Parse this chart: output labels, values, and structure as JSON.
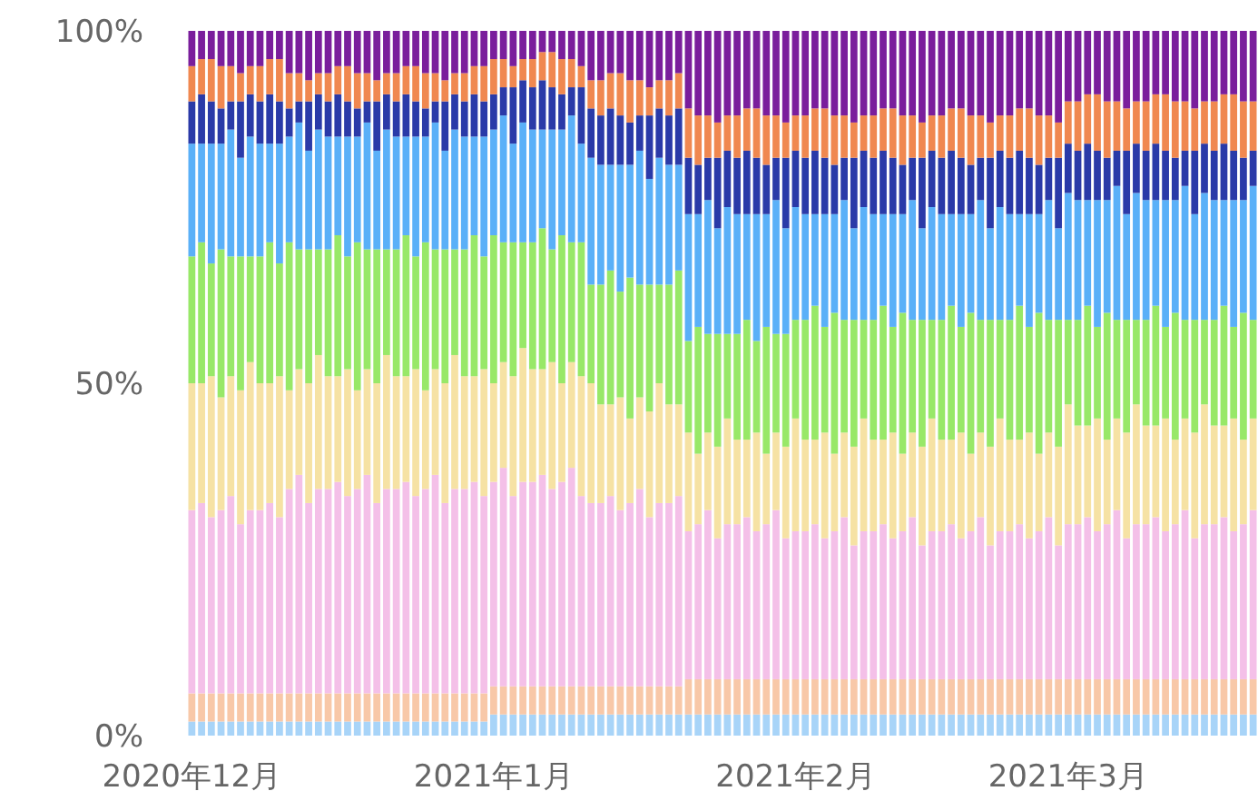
{
  "chart_data": {
    "type": "bar",
    "stacked": true,
    "xlim": [
      "2020-11-30T12:00",
      "2021-03-20T12:00"
    ],
    "xticks": [
      {
        "value": "2020-12-01",
        "label": "2020年12月"
      },
      {
        "value": "2021-01-01",
        "label": "2021年1月"
      },
      {
        "value": "2021-02-01",
        "label": "2021年2月"
      },
      {
        "value": "2021-03-01",
        "label": "2021年3月"
      }
    ],
    "ylim": [
      0,
      100
    ],
    "yticks": [
      {
        "value": 0,
        "label": "0%"
      },
      {
        "value": 50,
        "label": "50%"
      },
      {
        "value": 100,
        "label": "100%"
      }
    ],
    "x": [
      "2020-12-01",
      "2020-12-02",
      "2020-12-03",
      "2020-12-04",
      "2020-12-05",
      "2020-12-06",
      "2020-12-07",
      "2020-12-08",
      "2020-12-09",
      "2020-12-10",
      "2020-12-11",
      "2020-12-12",
      "2020-12-13",
      "2020-12-14",
      "2020-12-15",
      "2020-12-16",
      "2020-12-17",
      "2020-12-18",
      "2020-12-19",
      "2020-12-20",
      "2020-12-21",
      "2020-12-22",
      "2020-12-23",
      "2020-12-24",
      "2020-12-25",
      "2020-12-26",
      "2020-12-27",
      "2020-12-28",
      "2020-12-29",
      "2020-12-30",
      "2020-12-31",
      "2021-01-01",
      "2021-01-02",
      "2021-01-03",
      "2021-01-04",
      "2021-01-05",
      "2021-01-06",
      "2021-01-07",
      "2021-01-08",
      "2021-01-09",
      "2021-01-10",
      "2021-01-11",
      "2021-01-12",
      "2021-01-13",
      "2021-01-14",
      "2021-01-15",
      "2021-01-16",
      "2021-01-17",
      "2021-01-18",
      "2021-01-19",
      "2021-01-20",
      "2021-01-21",
      "2021-01-22",
      "2021-01-23",
      "2021-01-24",
      "2021-01-25",
      "2021-01-26",
      "2021-01-27",
      "2021-01-28",
      "2021-01-29",
      "2021-01-30",
      "2021-01-31",
      "2021-02-01",
      "2021-02-02",
      "2021-02-03",
      "2021-02-04",
      "2021-02-05",
      "2021-02-06",
      "2021-02-07",
      "2021-02-08",
      "2021-02-09",
      "2021-02-10",
      "2021-02-11",
      "2021-02-12",
      "2021-02-13",
      "2021-02-14",
      "2021-02-15",
      "2021-02-16",
      "2021-02-17",
      "2021-02-18",
      "2021-02-19",
      "2021-02-20",
      "2021-02-21",
      "2021-02-22",
      "2021-02-23",
      "2021-02-24",
      "2021-02-25",
      "2021-02-26",
      "2021-02-27",
      "2021-02-28",
      "2021-03-01",
      "2021-03-02",
      "2021-03-03",
      "2021-03-04",
      "2021-03-05",
      "2021-03-06",
      "2021-03-07",
      "2021-03-08",
      "2021-03-09",
      "2021-03-10",
      "2021-03-11",
      "2021-03-12",
      "2021-03-13",
      "2021-03-14",
      "2021-03-15",
      "2021-03-16",
      "2021-03-17",
      "2021-03-18",
      "2021-03-19",
      "2021-03-20"
    ],
    "series": [
      {
        "color": "#a8d4f8",
        "values": [
          2,
          2,
          2,
          2,
          2,
          2,
          2,
          2,
          2,
          2,
          2,
          2,
          2,
          2,
          2,
          2,
          2,
          2,
          2,
          2,
          2,
          2,
          2,
          2,
          2,
          2,
          2,
          2,
          2,
          2,
          2,
          3,
          3,
          3,
          3,
          3,
          3,
          3,
          3,
          3,
          3,
          3,
          3,
          3,
          3,
          3,
          3,
          3,
          3,
          3,
          3,
          3,
          3,
          3,
          3,
          3,
          3,
          3,
          3,
          3,
          3,
          3,
          3,
          3,
          3,
          3,
          3,
          3,
          3,
          3,
          3,
          3,
          3,
          3,
          3,
          3,
          3,
          3,
          3,
          3,
          3,
          3,
          3,
          3,
          3,
          3,
          3,
          3,
          3,
          3,
          3,
          3,
          3,
          3,
          3,
          3,
          3,
          3,
          3,
          3,
          3,
          3,
          3,
          3,
          3,
          3,
          3,
          3,
          3,
          3
        ]
      },
      {
        "color": "#f8c8a8",
        "values": [
          4,
          4,
          4,
          4,
          4,
          4,
          4,
          4,
          4,
          4,
          4,
          4,
          4,
          4,
          4,
          4,
          4,
          4,
          4,
          4,
          4,
          4,
          4,
          4,
          4,
          4,
          4,
          4,
          4,
          4,
          4,
          4,
          4,
          4,
          4,
          4,
          4,
          4,
          4,
          4,
          4,
          4,
          4,
          4,
          4,
          4,
          4,
          4,
          4,
          4,
          4,
          5,
          5,
          5,
          5,
          5,
          5,
          5,
          5,
          5,
          5,
          5,
          5,
          5,
          5,
          5,
          5,
          5,
          5,
          5,
          5,
          5,
          5,
          5,
          5,
          5,
          5,
          5,
          5,
          5,
          5,
          5,
          5,
          5,
          5,
          5,
          5,
          5,
          5,
          5,
          5,
          5,
          5,
          5,
          5,
          5,
          5,
          5,
          5,
          5,
          5,
          5,
          5,
          5,
          5,
          5,
          5,
          5,
          5,
          5
        ]
      },
      {
        "color": "#f4c0e8",
        "values": [
          26,
          27,
          25,
          26,
          28,
          24,
          26,
          26,
          27,
          25,
          29,
          31,
          27,
          29,
          29,
          30,
          28,
          29,
          31,
          27,
          29,
          29,
          30,
          28,
          29,
          31,
          27,
          29,
          29,
          30,
          28,
          29,
          31,
          27,
          29,
          29,
          30,
          28,
          29,
          31,
          27,
          26,
          26,
          27,
          25,
          26,
          28,
          24,
          26,
          26,
          27,
          21,
          22,
          24,
          20,
          22,
          22,
          23,
          21,
          22,
          24,
          20,
          21,
          21,
          22,
          20,
          21,
          23,
          19,
          21,
          21,
          22,
          20,
          21,
          23,
          19,
          21,
          21,
          22,
          20,
          21,
          23,
          19,
          21,
          21,
          22,
          20,
          21,
          23,
          19,
          22,
          22,
          23,
          21,
          22,
          24,
          20,
          22,
          22,
          23,
          21,
          22,
          24,
          20,
          22,
          22,
          23,
          21,
          22,
          24
        ]
      },
      {
        "color": "#f6e2a4",
        "values": [
          18,
          17,
          20,
          16,
          17,
          19,
          21,
          18,
          17,
          20,
          14,
          15,
          17,
          19,
          16,
          15,
          18,
          14,
          15,
          17,
          19,
          16,
          15,
          18,
          14,
          15,
          17,
          19,
          16,
          15,
          18,
          14,
          15,
          17,
          19,
          16,
          15,
          18,
          14,
          15,
          17,
          17,
          14,
          13,
          16,
          12,
          13,
          15,
          17,
          14,
          13,
          14,
          10,
          11,
          13,
          15,
          12,
          11,
          14,
          10,
          11,
          13,
          16,
          13,
          12,
          15,
          11,
          12,
          14,
          16,
          13,
          12,
          15,
          11,
          12,
          14,
          16,
          13,
          12,
          15,
          11,
          12,
          14,
          16,
          13,
          12,
          15,
          11,
          12,
          14,
          17,
          14,
          13,
          16,
          12,
          13,
          15,
          17,
          14,
          13,
          16,
          12,
          13,
          15,
          17,
          14,
          13,
          16,
          12,
          13
        ]
      },
      {
        "color": "#98e868",
        "values": [
          18,
          20,
          16,
          21,
          17,
          19,
          15,
          18,
          20,
          16,
          21,
          17,
          19,
          15,
          18,
          20,
          16,
          21,
          17,
          19,
          15,
          18,
          20,
          16,
          21,
          17,
          19,
          15,
          18,
          20,
          16,
          21,
          17,
          19,
          15,
          18,
          20,
          16,
          21,
          17,
          19,
          14,
          17,
          19,
          15,
          20,
          16,
          18,
          14,
          17,
          19,
          13,
          18,
          14,
          16,
          12,
          15,
          17,
          13,
          18,
          14,
          16,
          14,
          17,
          19,
          15,
          20,
          16,
          18,
          14,
          17,
          19,
          15,
          20,
          16,
          18,
          14,
          17,
          19,
          15,
          20,
          16,
          18,
          14,
          17,
          19,
          15,
          20,
          16,
          18,
          12,
          15,
          17,
          13,
          18,
          14,
          16,
          12,
          15,
          17,
          13,
          18,
          14,
          16,
          12,
          15,
          17,
          13,
          18,
          14
        ]
      },
      {
        "color": "#5ab0f8",
        "values": [
          16,
          14,
          17,
          15,
          18,
          14,
          17,
          16,
          14,
          17,
          15,
          18,
          14,
          17,
          16,
          14,
          17,
          15,
          18,
          14,
          17,
          16,
          14,
          17,
          15,
          18,
          14,
          17,
          16,
          14,
          17,
          15,
          18,
          14,
          17,
          16,
          14,
          17,
          15,
          18,
          14,
          18,
          17,
          15,
          18,
          16,
          19,
          15,
          18,
          17,
          15,
          18,
          16,
          19,
          15,
          18,
          17,
          15,
          18,
          16,
          19,
          15,
          16,
          15,
          13,
          16,
          14,
          17,
          13,
          16,
          15,
          13,
          16,
          14,
          17,
          13,
          16,
          15,
          13,
          16,
          14,
          17,
          13,
          16,
          15,
          13,
          16,
          14,
          17,
          13,
          18,
          17,
          15,
          18,
          16,
          19,
          15,
          18,
          17,
          15,
          18,
          16,
          19,
          15,
          18,
          17,
          15,
          18,
          16,
          19
        ]
      },
      {
        "color": "#2a3aa8",
        "values": [
          6,
          7,
          6,
          5,
          4,
          8,
          6,
          6,
          7,
          6,
          4,
          3,
          7,
          5,
          5,
          6,
          5,
          4,
          3,
          7,
          5,
          5,
          6,
          5,
          4,
          3,
          7,
          5,
          5,
          6,
          5,
          5,
          4,
          8,
          6,
          6,
          7,
          6,
          5,
          4,
          8,
          7,
          7,
          8,
          7,
          6,
          5,
          9,
          7,
          7,
          8,
          8,
          7,
          6,
          10,
          8,
          8,
          9,
          8,
          7,
          6,
          10,
          8,
          8,
          9,
          8,
          7,
          6,
          10,
          8,
          8,
          9,
          8,
          7,
          6,
          10,
          8,
          8,
          9,
          8,
          7,
          6,
          10,
          8,
          8,
          9,
          8,
          7,
          6,
          10,
          7,
          7,
          8,
          7,
          6,
          5,
          9,
          7,
          7,
          8,
          7,
          6,
          5,
          9,
          7,
          7,
          8,
          7,
          6,
          5
        ]
      },
      {
        "color": "#f08850",
        "values": [
          5,
          5,
          6,
          6,
          5,
          4,
          4,
          5,
          5,
          6,
          5,
          4,
          3,
          3,
          4,
          4,
          5,
          5,
          4,
          3,
          3,
          4,
          4,
          5,
          5,
          4,
          3,
          3,
          4,
          4,
          5,
          5,
          4,
          3,
          3,
          4,
          4,
          5,
          5,
          4,
          3,
          4,
          5,
          5,
          6,
          6,
          5,
          4,
          4,
          5,
          5,
          7,
          7,
          6,
          5,
          5,
          6,
          6,
          7,
          7,
          6,
          5,
          5,
          6,
          6,
          7,
          7,
          6,
          5,
          5,
          6,
          6,
          7,
          7,
          6,
          5,
          5,
          6,
          6,
          7,
          7,
          6,
          5,
          5,
          6,
          6,
          7,
          7,
          6,
          5,
          6,
          7,
          7,
          8,
          8,
          7,
          6,
          6,
          7,
          7,
          8,
          8,
          7,
          6,
          6,
          7,
          7,
          8,
          8,
          7
        ]
      },
      {
        "color": "#7a1e9c",
        "values": [
          5,
          4,
          4,
          5,
          5,
          6,
          5,
          5,
          4,
          4,
          6,
          6,
          7,
          6,
          6,
          5,
          5,
          6,
          6,
          7,
          6,
          6,
          5,
          5,
          6,
          6,
          7,
          6,
          6,
          5,
          5,
          4,
          4,
          5,
          4,
          4,
          3,
          3,
          4,
          4,
          5,
          7,
          7,
          6,
          6,
          7,
          7,
          8,
          7,
          7,
          6,
          11,
          12,
          12,
          13,
          12,
          12,
          11,
          11,
          12,
          12,
          13,
          12,
          12,
          11,
          11,
          12,
          12,
          13,
          12,
          12,
          11,
          11,
          12,
          12,
          13,
          12,
          12,
          11,
          11,
          12,
          12,
          13,
          12,
          12,
          11,
          11,
          12,
          12,
          13,
          10,
          10,
          9,
          9,
          10,
          10,
          11,
          10,
          10,
          9,
          9,
          10,
          10,
          11,
          10,
          10,
          9,
          9,
          10,
          10
        ]
      }
    ]
  }
}
